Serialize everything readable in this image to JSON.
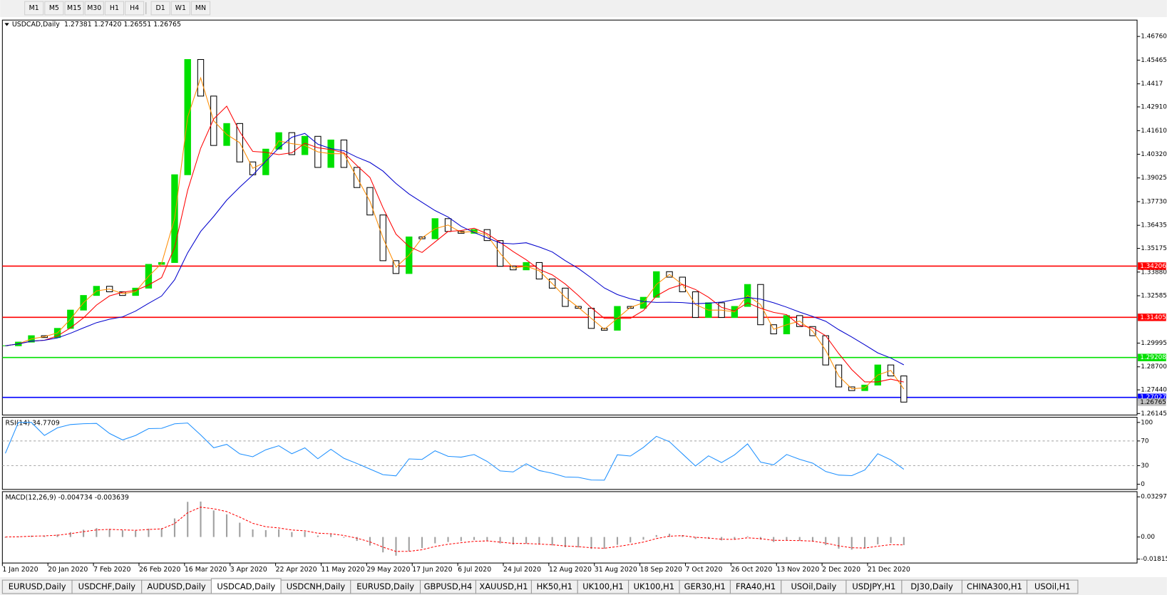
{
  "toolbar": {
    "timeframes": [
      "M1",
      "M5",
      "M15",
      "M30",
      "H1",
      "H4",
      "D1",
      "W1",
      "MN"
    ]
  },
  "chart_data": {
    "type": "candlestick",
    "title": "USDCAD,Daily",
    "quote": "1.27381 1.27420 1.26551 1.26765",
    "closes": [
      1.2985,
      1.3005,
      1.304,
      1.303,
      1.308,
      1.318,
      1.326,
      1.331,
      1.328,
      1.326,
      1.33,
      1.343,
      1.344,
      1.392,
      1.455,
      1.435,
      1.408,
      1.42,
      1.399,
      1.392,
      1.406,
      1.415,
      1.403,
      1.413,
      1.396,
      1.411,
      1.396,
      1.385,
      1.37,
      1.345,
      1.338,
      1.358,
      1.357,
      1.368,
      1.361,
      1.36,
      1.362,
      1.356,
      1.342,
      1.34,
      1.344,
      1.335,
      1.33,
      1.32,
      1.319,
      1.308,
      1.307,
      1.32,
      1.319,
      1.325,
      1.339,
      1.336,
      1.328,
      1.314,
      1.322,
      1.314,
      1.32,
      1.332,
      1.31,
      1.305,
      1.315,
      1.309,
      1.304,
      1.288,
      1.276,
      1.274,
      1.277,
      1.288,
      1.282,
      1.2677
    ],
    "ylim": [
      1.26064,
      1.47655
    ],
    "yticks": [
      {
        "value": 1.4676,
        "label": "1.46760"
      },
      1.45465,
      1.4417,
      {
        "value": 1.4291,
        "label": "1.42910"
      },
      {
        "value": 1.4161,
        "label": "1.41610"
      },
      {
        "value": 1.4032,
        "label": "1.40320"
      },
      1.39025,
      {
        "value": 1.3773,
        "label": "1.37730"
      },
      1.36435,
      1.35175,
      {
        "value": 1.3388,
        "label": "1.33880"
      },
      1.32585,
      1.29995,
      {
        "value": 1.287,
        "label": "1.28700"
      },
      {
        "value": 1.2744,
        "label": "1.27440"
      },
      1.26145
    ],
    "levels": [
      {
        "value": 1.34206,
        "color": "#ff0000"
      },
      {
        "value": 1.31405,
        "color": "#ff0000"
      },
      {
        "value": 1.29208,
        "color": "#00e000"
      },
      {
        "value": 1.27027,
        "color": "#0000ff"
      }
    ],
    "current_price": 1.26765,
    "x_labels": [
      "1 Jan 2020",
      "20 Jan 2020",
      "7 Feb 2020",
      "26 Feb 2020",
      "16 Mar 2020",
      "3 Apr 2020",
      "22 Apr 2020",
      "11 May 2020",
      "29 May 2020",
      "17 Jun 2020",
      "6 Jul 2020",
      "24 Jul 2020",
      "12 Aug 2020",
      "31 Aug 2020",
      "18 Sep 2020",
      "7 Oct 2020",
      "26 Oct 2020",
      "13 Nov 2020",
      "2 Dec 2020",
      "21 Dec 2020"
    ],
    "colors": {
      "up": "#00e000",
      "down": "#000000",
      "ma_fast": "#ff8c00",
      "ma_mid": "#ff0000",
      "ma_slow": "#0000cd"
    }
  },
  "rsi": {
    "title": "RSI(14) 34.7709",
    "ylim": [
      -8.4,
      108.4
    ],
    "yticks": [
      100,
      70,
      30,
      0
    ],
    "levels": [
      70,
      30
    ],
    "color": "#1e90ff"
  },
  "macd": {
    "title": "MACD(12,26,9) -0.004734 -0.003639",
    "ylim": [
      -0.02137,
      0.03725
    ],
    "yticks": [
      0.032972,
      {
        "value": 0,
        "label": "0.00"
      },
      -0.01815
    ],
    "hist_color": "#a0a0a0",
    "signal_color": "#ff0000"
  },
  "tabs": [
    "EURUSD,Daily",
    "USDCHF,Daily",
    "AUDUSD,Daily",
    "USDCAD,Daily",
    "USDCNH,Daily",
    "EURUSD,Daily",
    "GBPUSD,H4",
    "XAUUSD,H1",
    "HK50,H1",
    "UK100,H1",
    "UK100,H1",
    "GER30,H1",
    "FRA40,H1",
    "USOil,Daily",
    "USDJPY,H1",
    "DJ30,Daily",
    "CHINA300,H1",
    "USOil,H1"
  ],
  "active_tab": 3
}
